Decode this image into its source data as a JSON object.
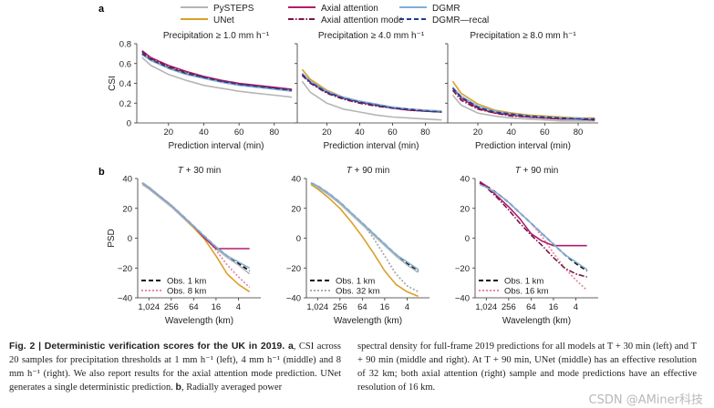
{
  "panel_letters": {
    "a": "a",
    "b": "b"
  },
  "legend": {
    "entries": [
      {
        "name": "PySTEPS",
        "color": "#b5b5b5",
        "dash": "solid"
      },
      {
        "name": "Axial attention",
        "color": "#b01e6e",
        "dash": "solid"
      },
      {
        "name": "DGMR",
        "color": "#7fb0d8",
        "dash": "solid"
      },
      {
        "name": "UNet",
        "color": "#d9a02a",
        "dash": "solid"
      },
      {
        "name": "Axial attention mode",
        "color": "#7a1446",
        "dash": "dashdot"
      },
      {
        "name": "DGMR—recal",
        "color": "#1f3c8f",
        "dash": "dashed"
      }
    ]
  },
  "captions": {
    "left_bold": "Fig. 2 | Deterministic verification scores for the UK in 2019. a",
    "left_text": ", CSI across 20 samples for precipitation thresholds at 1 mm h⁻¹ (left), 4 mm h⁻¹ (middle) and 8 mm h⁻¹ (right). We also report results for the axial attention mode prediction. UNet generates a single deterministic prediction. ",
    "left_bold2": "b",
    "left_text2": ", Radially averaged power",
    "right_text": "spectral density for full-frame 2019 predictions for all models at T + 30 min (left) and T + 90 min (middle and right). At T + 90 min, UNet (middle) has an effective resolution of 32 km; both axial attention (right) sample and mode predictions have an effective resolution of 16 km."
  },
  "watermark": "CSDN @AMiner科技",
  "chart_data": [
    {
      "type": "line",
      "id": "csi-1mm",
      "title": "Precipitation ≥ 1.0 mm h⁻¹",
      "xlabel": "Prediction interval (min)",
      "ylabel": "CSI",
      "xlim": [
        2,
        92
      ],
      "ylim": [
        0,
        0.8
      ],
      "xticks": [
        20,
        40,
        60,
        80
      ],
      "yticks": [
        0,
        0.2,
        0.4,
        0.6,
        0.8
      ],
      "ytick_labels": [
        "0",
        "0.2",
        "0.4",
        "0.6",
        "0.8"
      ],
      "x": [
        5,
        10,
        20,
        30,
        40,
        50,
        60,
        70,
        80,
        90
      ],
      "series": [
        {
          "name": "PySTEPS",
          "values": [
            0.66,
            0.58,
            0.49,
            0.43,
            0.38,
            0.35,
            0.32,
            0.3,
            0.28,
            0.26
          ]
        },
        {
          "name": "UNet",
          "values": [
            0.7,
            0.64,
            0.56,
            0.5,
            0.46,
            0.42,
            0.39,
            0.37,
            0.35,
            0.33
          ]
        },
        {
          "name": "Axial attention",
          "values": [
            0.73,
            0.66,
            0.58,
            0.52,
            0.47,
            0.43,
            0.4,
            0.38,
            0.36,
            0.34
          ]
        },
        {
          "name": "Axial attention mode",
          "values": [
            0.72,
            0.65,
            0.57,
            0.51,
            0.46,
            0.42,
            0.39,
            0.37,
            0.35,
            0.33
          ]
        },
        {
          "name": "DGMR",
          "values": [
            0.69,
            0.63,
            0.55,
            0.49,
            0.45,
            0.41,
            0.38,
            0.36,
            0.34,
            0.32
          ]
        },
        {
          "name": "DGMR—recal",
          "values": [
            0.7,
            0.64,
            0.56,
            0.5,
            0.46,
            0.42,
            0.39,
            0.37,
            0.35,
            0.33
          ]
        }
      ]
    },
    {
      "type": "line",
      "id": "csi-4mm",
      "title": "Precipitation ≥ 4.0 mm h⁻¹",
      "xlabel": "Prediction interval (min)",
      "ylabel": "",
      "xlim": [
        2,
        92
      ],
      "ylim": [
        0,
        0.8
      ],
      "xticks": [
        20,
        40,
        60,
        80
      ],
      "yticks": [
        0,
        0.2,
        0.4,
        0.6,
        0.8
      ],
      "ytick_labels": [],
      "x": [
        5,
        10,
        20,
        30,
        40,
        50,
        60,
        70,
        80,
        90
      ],
      "series": [
        {
          "name": "PySTEPS",
          "values": [
            0.42,
            0.31,
            0.2,
            0.14,
            0.11,
            0.08,
            0.06,
            0.05,
            0.04,
            0.03
          ]
        },
        {
          "name": "UNet",
          "values": [
            0.54,
            0.44,
            0.33,
            0.26,
            0.22,
            0.19,
            0.16,
            0.14,
            0.13,
            0.12
          ]
        },
        {
          "name": "Axial attention",
          "values": [
            0.5,
            0.41,
            0.31,
            0.25,
            0.21,
            0.18,
            0.15,
            0.13,
            0.12,
            0.11
          ]
        },
        {
          "name": "Axial attention mode",
          "values": [
            0.48,
            0.4,
            0.3,
            0.24,
            0.2,
            0.17,
            0.15,
            0.13,
            0.12,
            0.11
          ]
        },
        {
          "name": "DGMR",
          "values": [
            0.5,
            0.42,
            0.32,
            0.26,
            0.22,
            0.19,
            0.16,
            0.14,
            0.13,
            0.12
          ]
        },
        {
          "name": "DGMR—recal",
          "values": [
            0.49,
            0.41,
            0.31,
            0.25,
            0.21,
            0.18,
            0.15,
            0.14,
            0.12,
            0.11
          ]
        }
      ]
    },
    {
      "type": "line",
      "id": "csi-8mm",
      "title": "Precipitation ≥ 8.0 mm h⁻¹",
      "xlabel": "Prediction interval (min)",
      "ylabel": "",
      "xlim": [
        2,
        92
      ],
      "ylim": [
        0,
        0.8
      ],
      "xticks": [
        20,
        40,
        60,
        80
      ],
      "yticks": [
        0,
        0.2,
        0.4,
        0.6,
        0.8
      ],
      "ytick_labels": [],
      "x": [
        5,
        10,
        20,
        30,
        40,
        50,
        60,
        70,
        80,
        90
      ],
      "series": [
        {
          "name": "PySTEPS",
          "values": [
            0.28,
            0.18,
            0.1,
            0.07,
            0.05,
            0.04,
            0.03,
            0.02,
            0.02,
            0.02
          ]
        },
        {
          "name": "UNet",
          "values": [
            0.42,
            0.3,
            0.19,
            0.13,
            0.1,
            0.08,
            0.07,
            0.06,
            0.05,
            0.05
          ]
        },
        {
          "name": "Axial attention",
          "values": [
            0.36,
            0.25,
            0.15,
            0.1,
            0.08,
            0.06,
            0.05,
            0.04,
            0.04,
            0.03
          ]
        },
        {
          "name": "Axial attention mode",
          "values": [
            0.33,
            0.23,
            0.14,
            0.1,
            0.07,
            0.06,
            0.05,
            0.04,
            0.04,
            0.03
          ]
        },
        {
          "name": "DGMR",
          "values": [
            0.36,
            0.27,
            0.17,
            0.12,
            0.09,
            0.07,
            0.06,
            0.05,
            0.05,
            0.04
          ]
        },
        {
          "name": "DGMR—recal",
          "values": [
            0.35,
            0.26,
            0.16,
            0.11,
            0.09,
            0.07,
            0.06,
            0.05,
            0.04,
            0.04
          ]
        }
      ]
    },
    {
      "type": "line",
      "id": "psd-30",
      "title": "T + 30 min",
      "xlabel": "Wavelength (km)",
      "ylabel": "PSD",
      "xscale": "log2-reversed",
      "xlim": [
        2048,
        1
      ],
      "ylim": [
        -40,
        40
      ],
      "xticks": [
        1024,
        256,
        64,
        16,
        4
      ],
      "xtick_labels": [
        "1,024",
        "256",
        "64",
        "16",
        "4"
      ],
      "yticks": [
        -40,
        -20,
        0,
        20,
        40
      ],
      "ytick_labels": [
        "−40",
        "−20",
        "0",
        "20",
        "40"
      ],
      "x": [
        1536,
        1024,
        512,
        256,
        128,
        64,
        32,
        16,
        8,
        4,
        2
      ],
      "legend_obs": [
        {
          "label": "Obs. 1 km",
          "color": "#111111",
          "dash": "dashed"
        },
        {
          "label": "Obs. 8 km",
          "color": "#e88aa0",
          "dash": "dotted"
        }
      ],
      "series": [
        {
          "name": "Obs. 1 km",
          "values": [
            37,
            34,
            28,
            22,
            15,
            8,
            1,
            -6,
            -12,
            -17,
            -22
          ]
        },
        {
          "name": "Obs. 8 km",
          "values": [
            37,
            34,
            28,
            22,
            15,
            8,
            1,
            -8,
            -18,
            -26,
            -33
          ]
        },
        {
          "name": "PySTEPS",
          "values": [
            36,
            33,
            27,
            21,
            14,
            7,
            0,
            -7,
            -13,
            -18,
            -24
          ]
        },
        {
          "name": "UNet",
          "values": [
            37,
            34,
            28,
            22,
            15,
            7,
            -1,
            -12,
            -24,
            -31,
            -36
          ]
        },
        {
          "name": "Axial attention",
          "values": [
            37,
            34,
            28,
            22,
            15,
            8,
            0,
            -7,
            -7,
            -7,
            -7
          ]
        },
        {
          "name": "DGMR",
          "values": [
            37,
            34,
            28,
            22,
            15,
            8,
            1,
            -6,
            -12,
            -16,
            -20
          ]
        }
      ]
    },
    {
      "type": "line",
      "id": "psd-90-unet",
      "title": "T + 90 min",
      "xlabel": "Wavelength (km)",
      "ylabel": "",
      "xscale": "log2-reversed",
      "xlim": [
        2048,
        1
      ],
      "ylim": [
        -40,
        40
      ],
      "xticks": [
        1024,
        256,
        64,
        16,
        4
      ],
      "xtick_labels": [
        "1,024",
        "256",
        "64",
        "16",
        "4"
      ],
      "yticks": [
        -40,
        -20,
        0,
        20,
        40
      ],
      "ytick_labels": [
        "−40",
        "−20",
        "0",
        "20",
        "40"
      ],
      "x": [
        1536,
        1024,
        512,
        256,
        128,
        64,
        32,
        16,
        8,
        4,
        2
      ],
      "legend_obs": [
        {
          "label": "Obs. 1 km",
          "color": "#111111",
          "dash": "dashed"
        },
        {
          "label": "Obs. 32 km",
          "color": "#aaaaaa",
          "dash": "dotted"
        }
      ],
      "series": [
        {
          "name": "Obs. 1 km",
          "values": [
            37,
            35,
            30,
            24,
            17,
            10,
            3,
            -4,
            -11,
            -17,
            -22
          ]
        },
        {
          "name": "Obs. 32 km",
          "values": [
            37,
            35,
            30,
            24,
            17,
            10,
            0,
            -12,
            -24,
            -32,
            -36
          ]
        },
        {
          "name": "PySTEPS",
          "values": [
            36,
            34,
            29,
            23,
            16,
            9,
            2,
            -5,
            -12,
            -18,
            -23
          ]
        },
        {
          "name": "UNet",
          "values": [
            36,
            33,
            27,
            20,
            11,
            1,
            -10,
            -22,
            -31,
            -36,
            -39
          ]
        },
        {
          "name": "DGMR",
          "values": [
            37,
            35,
            30,
            24,
            17,
            10,
            3,
            -4,
            -11,
            -16,
            -21
          ]
        }
      ]
    },
    {
      "type": "line",
      "id": "psd-90-axial",
      "title": "T + 90 min",
      "xlabel": "Wavelength (km)",
      "ylabel": "",
      "xscale": "log2-reversed",
      "xlim": [
        2048,
        1
      ],
      "ylim": [
        -40,
        40
      ],
      "xticks": [
        1024,
        256,
        64,
        16,
        4
      ],
      "xtick_labels": [
        "1,024",
        "256",
        "64",
        "16",
        "4"
      ],
      "yticks": [
        -40,
        -20,
        0,
        20,
        40
      ],
      "ytick_labels": [
        "−40",
        "−20",
        "0",
        "20",
        "40"
      ],
      "x": [
        1536,
        1024,
        512,
        256,
        128,
        64,
        32,
        16,
        8,
        4,
        2
      ],
      "legend_obs": [
        {
          "label": "Obs. 1 km",
          "color": "#111111",
          "dash": "dashed"
        },
        {
          "label": "Obs. 16 km",
          "color": "#e88aa0",
          "dash": "dotted"
        }
      ],
      "series": [
        {
          "name": "Obs. 1 km",
          "values": [
            37,
            35,
            30,
            24,
            17,
            10,
            3,
            -4,
            -11,
            -17,
            -22
          ]
        },
        {
          "name": "Obs. 16 km",
          "values": [
            37,
            35,
            30,
            24,
            17,
            10,
            1,
            -10,
            -20,
            -28,
            -35
          ]
        },
        {
          "name": "Axial attention",
          "values": [
            38,
            35,
            28,
            21,
            13,
            3,
            -2,
            -5,
            -5,
            -5,
            -5
          ]
        },
        {
          "name": "Axial attention mode",
          "values": [
            37,
            34,
            27,
            19,
            10,
            2,
            -5,
            -13,
            -20,
            -24,
            -26
          ]
        },
        {
          "name": "DGMR",
          "values": [
            36,
            34,
            30,
            24,
            17,
            10,
            3,
            -4,
            -11,
            -16,
            -21
          ]
        }
      ]
    }
  ]
}
